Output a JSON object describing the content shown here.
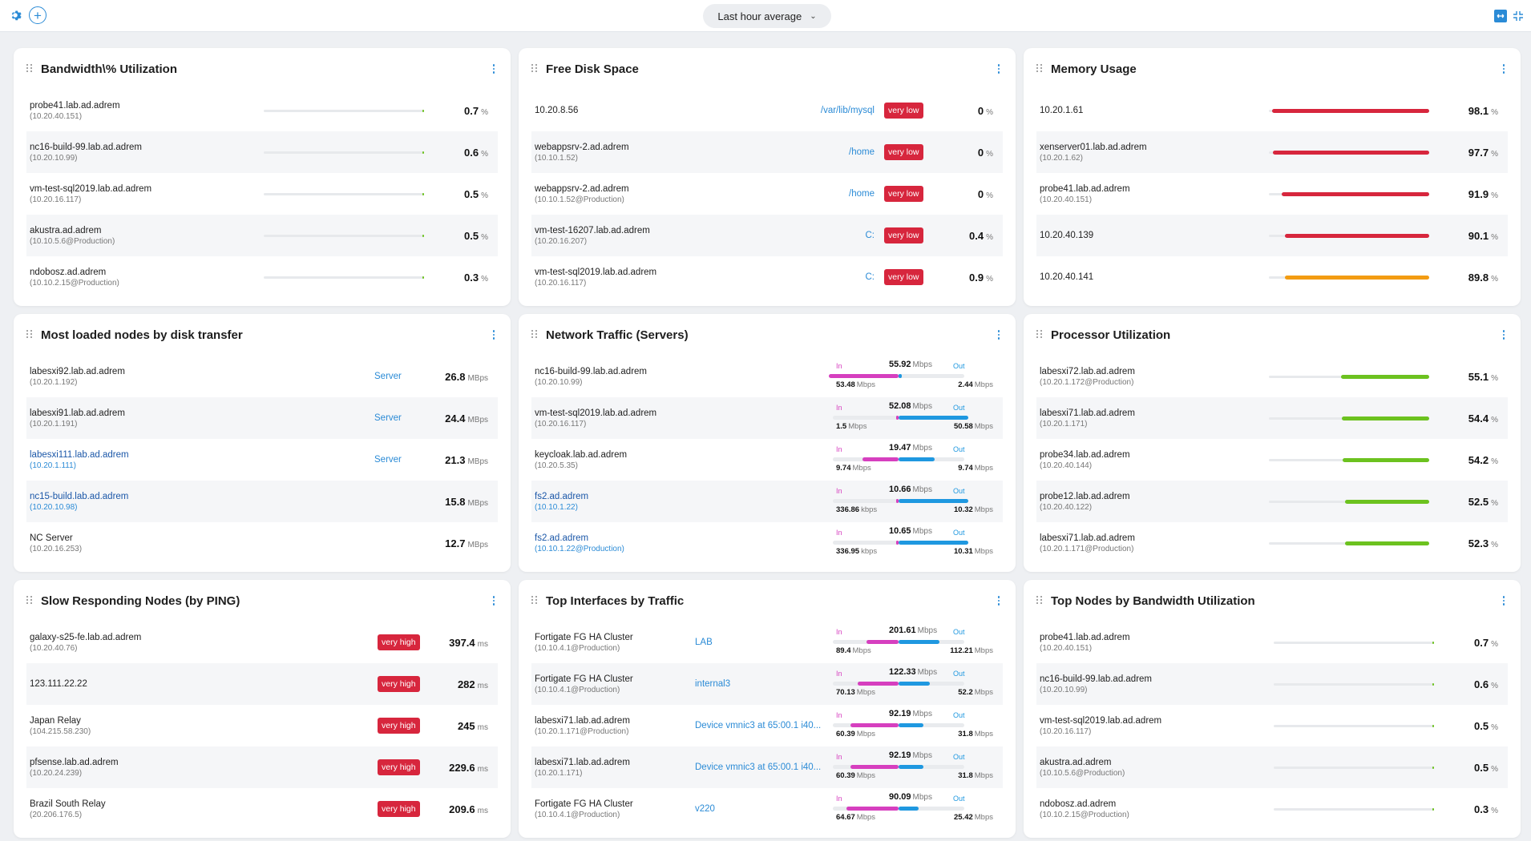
{
  "toolbar": {
    "range_label": "Last hour average",
    "settings_icon": "gear-icon",
    "add_icon": "plus-icon",
    "expand_icon": "expand-icon",
    "collapse_icon": "collapse-icon"
  },
  "colors": {
    "accent": "#2b8bd6",
    "badge": "#d7263d",
    "bar_green": "#6cc21f",
    "bar_red": "#d7263d",
    "bar_orange": "#f39c12",
    "traffic_in": "#d63fbf",
    "traffic_out": "#1f98e0"
  },
  "widgets": {
    "bandwidth": {
      "title": "Bandwidth\\% Utilization",
      "rows": [
        {
          "name": "probe41.lab.ad.adrem",
          "sub": "(10.20.40.151)",
          "value": "0.7",
          "unit": "%",
          "fraction": 0.007
        },
        {
          "name": "nc16-build-99.lab.ad.adrem",
          "sub": "(10.20.10.99)",
          "value": "0.6",
          "unit": "%",
          "fraction": 0.006
        },
        {
          "name": "vm-test-sql2019.lab.ad.adrem",
          "sub": "(10.20.16.117)",
          "value": "0.5",
          "unit": "%",
          "fraction": 0.005
        },
        {
          "name": "akustra.ad.adrem",
          "sub": "(10.10.5.6@Production)",
          "value": "0.5",
          "unit": "%",
          "fraction": 0.005
        },
        {
          "name": "ndobosz.ad.adrem",
          "sub": "(10.10.2.15@Production)",
          "value": "0.3",
          "unit": "%",
          "fraction": 0.003
        }
      ]
    },
    "disk": {
      "title": "Free Disk Space",
      "rows": [
        {
          "name": "10.20.8.56",
          "sub": "",
          "path": "/var/lib/mysql",
          "badge": "very low",
          "value": "0",
          "unit": "%"
        },
        {
          "name": "webappsrv-2.ad.adrem",
          "sub": "(10.10.1.52)",
          "path": "/home",
          "badge": "very low",
          "value": "0",
          "unit": "%"
        },
        {
          "name": "webappsrv-2.ad.adrem",
          "sub": "(10.10.1.52@Production)",
          "path": "/home",
          "badge": "very low",
          "value": "0",
          "unit": "%"
        },
        {
          "name": "vm-test-16207.lab.ad.adrem",
          "sub": "(10.20.16.207)",
          "path": "C:",
          "badge": "very low",
          "value": "0.4",
          "unit": "%"
        },
        {
          "name": "vm-test-sql2019.lab.ad.adrem",
          "sub": "(10.20.16.117)",
          "path": "C:",
          "badge": "very low",
          "value": "0.9",
          "unit": "%"
        }
      ]
    },
    "memory": {
      "title": "Memory Usage",
      "rows": [
        {
          "name": "10.20.1.61",
          "sub": "",
          "value": "98.1",
          "unit": "%",
          "fraction": 0.981,
          "color": "red"
        },
        {
          "name": "xenserver01.lab.ad.adrem",
          "sub": "(10.20.1.62)",
          "value": "97.7",
          "unit": "%",
          "fraction": 0.977,
          "color": "red"
        },
        {
          "name": "probe41.lab.ad.adrem",
          "sub": "(10.20.40.151)",
          "value": "91.9",
          "unit": "%",
          "fraction": 0.919,
          "color": "red"
        },
        {
          "name": "10.20.40.139",
          "sub": "",
          "value": "90.1",
          "unit": "%",
          "fraction": 0.901,
          "color": "red"
        },
        {
          "name": "10.20.40.141",
          "sub": "",
          "value": "89.8",
          "unit": "%",
          "fraction": 0.898,
          "color": "orange"
        }
      ]
    },
    "disk_transfer": {
      "title": "Most loaded nodes by disk transfer",
      "rows": [
        {
          "name": "labesxi92.lab.ad.adrem",
          "sub": "(10.20.1.192)",
          "tag": "Server",
          "value": "26.8",
          "unit": "MBps",
          "link": false
        },
        {
          "name": "labesxi91.lab.ad.adrem",
          "sub": "(10.20.1.191)",
          "tag": "Server",
          "value": "24.4",
          "unit": "MBps",
          "link": false
        },
        {
          "name": "labesxi111.lab.ad.adrem",
          "sub": "(10.20.1.111)",
          "tag": "Server",
          "value": "21.3",
          "unit": "MBps",
          "link": true
        },
        {
          "name": "nc15-build.lab.ad.adrem",
          "sub": "(10.20.10.98)",
          "tag": "",
          "value": "15.8",
          "unit": "MBps",
          "link": true
        },
        {
          "name": "NC Server",
          "sub": "(10.20.16.253)",
          "tag": "",
          "value": "12.7",
          "unit": "MBps",
          "link": false
        }
      ]
    },
    "network": {
      "title": "Network Traffic (Servers)",
      "in_label": "In",
      "out_label": "Out",
      "rows": [
        {
          "name": "nc16-build-99.lab.ad.adrem",
          "sub": "(10.20.10.99)",
          "link": false,
          "total": "55.92",
          "total_unit": "Mbps",
          "in": "53.48",
          "in_unit": "Mbps",
          "out": "2.44",
          "out_unit": "Mbps",
          "in_frac": 0.96,
          "out_frac": 0.04
        },
        {
          "name": "vm-test-sql2019.lab.ad.adrem",
          "sub": "(10.20.16.117)",
          "link": false,
          "total": "52.08",
          "total_unit": "Mbps",
          "in": "1.5",
          "in_unit": "Mbps",
          "out": "50.58",
          "out_unit": "Mbps",
          "in_frac": 0.03,
          "out_frac": 0.97
        },
        {
          "name": "keycloak.lab.ad.adrem",
          "sub": "(10.20.5.35)",
          "link": false,
          "total": "19.47",
          "total_unit": "Mbps",
          "in": "9.74",
          "in_unit": "Mbps",
          "out": "9.74",
          "out_unit": "Mbps",
          "in_frac": 0.5,
          "out_frac": 0.5
        },
        {
          "name": "fs2.ad.adrem",
          "sub": "(10.10.1.22)",
          "link": true,
          "total": "10.66",
          "total_unit": "Mbps",
          "in": "336.86",
          "in_unit": "kbps",
          "out": "10.32",
          "out_unit": "Mbps",
          "in_frac": 0.03,
          "out_frac": 0.97
        },
        {
          "name": "fs2.ad.adrem",
          "sub": "(10.10.1.22@Production)",
          "link": true,
          "total": "10.65",
          "total_unit": "Mbps",
          "in": "336.95",
          "in_unit": "kbps",
          "out": "10.31",
          "out_unit": "Mbps",
          "in_frac": 0.03,
          "out_frac": 0.97
        }
      ]
    },
    "processor": {
      "title": "Processor Utilization",
      "rows": [
        {
          "name": "labesxi72.lab.ad.adrem",
          "sub": "(10.20.1.172@Production)",
          "value": "55.1",
          "unit": "%",
          "fraction": 0.551
        },
        {
          "name": "labesxi71.lab.ad.adrem",
          "sub": "(10.20.1.171)",
          "value": "54.4",
          "unit": "%",
          "fraction": 0.544
        },
        {
          "name": "probe34.lab.ad.adrem",
          "sub": "(10.20.40.144)",
          "value": "54.2",
          "unit": "%",
          "fraction": 0.542
        },
        {
          "name": "probe12.lab.ad.adrem",
          "sub": "(10.20.40.122)",
          "value": "52.5",
          "unit": "%",
          "fraction": 0.525
        },
        {
          "name": "labesxi71.lab.ad.adrem",
          "sub": "(10.20.1.171@Production)",
          "value": "52.3",
          "unit": "%",
          "fraction": 0.523
        }
      ]
    },
    "ping": {
      "title": "Slow Responding Nodes (by PING)",
      "rows": [
        {
          "name": "galaxy-s25-fe.lab.ad.adrem",
          "sub": "(10.20.40.76)",
          "badge": "very high",
          "value": "397.4",
          "unit": "ms"
        },
        {
          "name": "123.111.22.22",
          "sub": "",
          "badge": "very high",
          "value": "282",
          "unit": "ms"
        },
        {
          "name": "Japan Relay",
          "sub": "(104.215.58.230)",
          "badge": "very high",
          "value": "245",
          "unit": "ms"
        },
        {
          "name": "pfsense.lab.ad.adrem",
          "sub": "(10.20.24.239)",
          "badge": "very high",
          "value": "229.6",
          "unit": "ms"
        },
        {
          "name": "Brazil South Relay",
          "sub": "(20.206.176.5)",
          "badge": "very high",
          "value": "209.6",
          "unit": "ms"
        }
      ]
    },
    "interfaces": {
      "title": "Top Interfaces by Traffic",
      "in_label": "In",
      "out_label": "Out",
      "rows": [
        {
          "name": "Fortigate FG HA Cluster",
          "sub": "(10.10.4.1@Production)",
          "iface": "LAB",
          "total": "201.61",
          "total_unit": "Mbps",
          "in": "89.4",
          "in_unit": "Mbps",
          "out": "112.21",
          "out_unit": "Mbps",
          "in_frac": 0.44,
          "out_frac": 0.56
        },
        {
          "name": "Fortigate FG HA Cluster",
          "sub": "(10.10.4.1@Production)",
          "iface": "internal3",
          "total": "122.33",
          "total_unit": "Mbps",
          "in": "70.13",
          "in_unit": "Mbps",
          "out": "52.2",
          "out_unit": "Mbps",
          "in_frac": 0.57,
          "out_frac": 0.43
        },
        {
          "name": "labesxi71.lab.ad.adrem",
          "sub": "(10.20.1.171@Production)",
          "iface": "Device vmnic3 at 65:00.1 i40...",
          "total": "92.19",
          "total_unit": "Mbps",
          "in": "60.39",
          "in_unit": "Mbps",
          "out": "31.8",
          "out_unit": "Mbps",
          "in_frac": 0.66,
          "out_frac": 0.34
        },
        {
          "name": "labesxi71.lab.ad.adrem",
          "sub": "(10.20.1.171)",
          "iface": "Device vmnic3 at 65:00.1 i40...",
          "total": "92.19",
          "total_unit": "Mbps",
          "in": "60.39",
          "in_unit": "Mbps",
          "out": "31.8",
          "out_unit": "Mbps",
          "in_frac": 0.66,
          "out_frac": 0.34
        },
        {
          "name": "Fortigate FG HA Cluster",
          "sub": "(10.10.4.1@Production)",
          "iface": "v220",
          "total": "90.09",
          "total_unit": "Mbps",
          "in": "64.67",
          "in_unit": "Mbps",
          "out": "25.42",
          "out_unit": "Mbps",
          "in_frac": 0.72,
          "out_frac": 0.28
        }
      ]
    },
    "top_bandwidth": {
      "title": "Top Nodes by Bandwidth Utilization",
      "rows": [
        {
          "name": "probe41.lab.ad.adrem",
          "sub": "(10.20.40.151)",
          "value": "0.7",
          "unit": "%",
          "fraction": 0.007
        },
        {
          "name": "nc16-build-99.lab.ad.adrem",
          "sub": "(10.20.10.99)",
          "value": "0.6",
          "unit": "%",
          "fraction": 0.006
        },
        {
          "name": "vm-test-sql2019.lab.ad.adrem",
          "sub": "(10.20.16.117)",
          "value": "0.5",
          "unit": "%",
          "fraction": 0.005
        },
        {
          "name": "akustra.ad.adrem",
          "sub": "(10.10.5.6@Production)",
          "value": "0.5",
          "unit": "%",
          "fraction": 0.005
        },
        {
          "name": "ndobosz.ad.adrem",
          "sub": "(10.10.2.15@Production)",
          "value": "0.3",
          "unit": "%",
          "fraction": 0.003
        }
      ]
    }
  }
}
